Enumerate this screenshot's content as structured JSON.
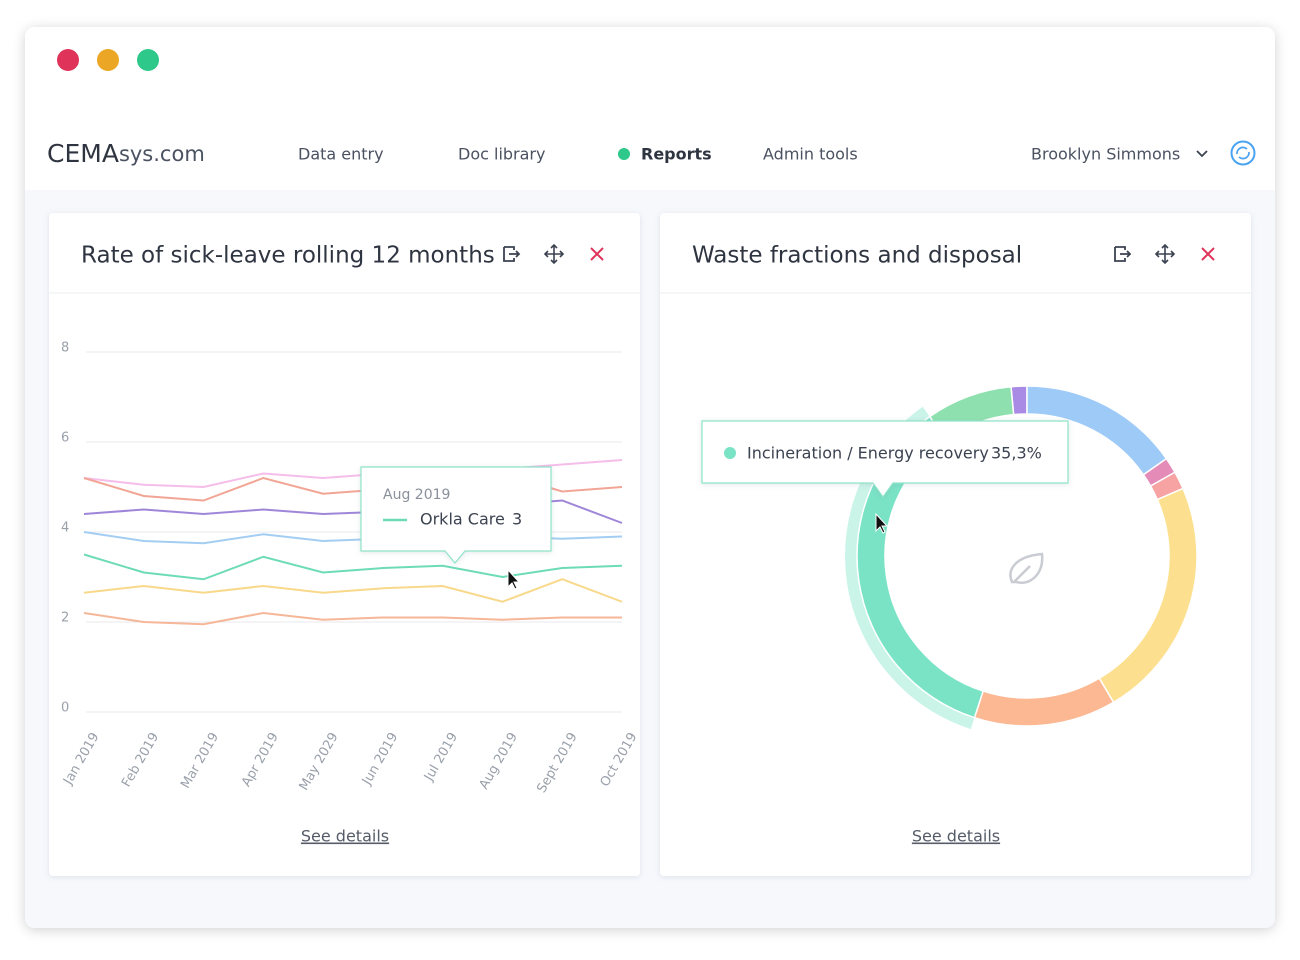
{
  "header": {
    "brand": "CEMA",
    "brand_suffix": "sys.com",
    "nav": [
      "Data entry",
      "Doc library",
      "Reports",
      "Admin tools"
    ],
    "user": "Brooklyn Simmons"
  },
  "chart_data": [
    {
      "type": "line",
      "title": "Rate of sick-leave rolling 12 months",
      "details_link": "See details",
      "categories": [
        "Jan 2019",
        "Feb 2019",
        "Mar 2019",
        "Apr 2019",
        "May 2029",
        "Jun 2019",
        "Jul 2019",
        "Aug 2019",
        "Sept 2019",
        "Oct 2019"
      ],
      "ylim": [
        0,
        8
      ],
      "yticks": [
        0,
        2,
        4,
        6,
        8
      ],
      "grid": true,
      "series": [
        {
          "color": "#f5bdea",
          "values": [
            5.2,
            5.05,
            5.0,
            5.3,
            5.2,
            5.3,
            5.4,
            5.4,
            5.5,
            5.6
          ]
        },
        {
          "color": "#f2a595",
          "values": [
            5.2,
            4.8,
            4.7,
            5.2,
            4.85,
            4.95,
            5.0,
            5.3,
            4.9,
            5.0
          ]
        },
        {
          "color": "#9f86d8",
          "values": [
            4.4,
            4.5,
            4.4,
            4.5,
            4.4,
            4.45,
            4.5,
            4.6,
            4.7,
            4.2
          ]
        },
        {
          "color": "#a3cdf2",
          "values": [
            4.0,
            3.8,
            3.75,
            3.95,
            3.8,
            3.85,
            3.9,
            3.9,
            3.85,
            3.9
          ]
        },
        {
          "name": "Orkla Care",
          "color": "#6ddbb8",
          "values": [
            3.5,
            3.1,
            2.95,
            3.45,
            3.1,
            3.2,
            3.25,
            3,
            3.2,
            3.25
          ]
        },
        {
          "color": "#f8d88a",
          "values": [
            2.65,
            2.8,
            2.65,
            2.8,
            2.65,
            2.75,
            2.8,
            2.45,
            2.95,
            2.45
          ]
        },
        {
          "color": "#f6b698",
          "values": [
            2.2,
            2.0,
            1.95,
            2.2,
            2.05,
            2.1,
            2.1,
            2.05,
            2.1,
            2.1
          ]
        }
      ]
    },
    {
      "type": "donut",
      "title": "Waste fractions and disposal",
      "details_link": "See details",
      "categories": [
        null,
        null,
        null,
        null,
        null,
        null,
        "Incineration / Energy recovery",
        null
      ],
      "values": [
        1.5,
        15.3,
        1.5,
        1.7,
        23,
        13.5,
        35.3,
        8.2
      ],
      "value_labels": [
        null,
        null,
        null,
        null,
        null,
        null,
        "35,3%",
        null
      ],
      "colors": [
        "#a98be6",
        "#9ecaf7",
        "#e48bb8",
        "#f7a3a3",
        "#fde08f",
        "#fbb893",
        "#7ae3c6",
        "#8ee0ae"
      ]
    }
  ]
}
